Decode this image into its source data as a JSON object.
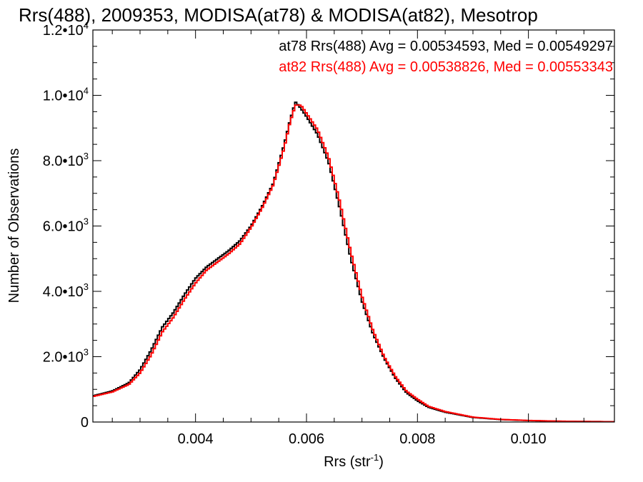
{
  "chart_data": {
    "type": "line",
    "step": true,
    "title": "Rrs(488), 2009353, MODISA(at78) & MODISA(at82), Mesotrop",
    "xlabel": "Rrs (str",
    "xlabel_sup": "-1",
    "xlabel_end": ")",
    "ylabel": "Number of Observations",
    "xlim": [
      0.00215,
      0.01155
    ],
    "ylim": [
      0,
      12000
    ],
    "xticks": [
      {
        "value": 0.004,
        "label": "0.004"
      },
      {
        "value": 0.006,
        "label": "0.006"
      },
      {
        "value": 0.008,
        "label": "0.008"
      },
      {
        "value": 0.01,
        "label": "0.010"
      }
    ],
    "yticks": [
      {
        "value": 0,
        "mant": "0",
        "exp": ""
      },
      {
        "value": 2000,
        "mant": "2.0•10",
        "exp": "3"
      },
      {
        "value": 4000,
        "mant": "4.0•10",
        "exp": "3"
      },
      {
        "value": 6000,
        "mant": "6.0•10",
        "exp": "3"
      },
      {
        "value": 8000,
        "mant": "8.0•10",
        "exp": "3"
      },
      {
        "value": 10000,
        "mant": "1.0•10",
        "exp": "4"
      },
      {
        "value": 12000,
        "mant": "1.2•10",
        "exp": "4"
      }
    ],
    "legend_entries": [
      {
        "text": "at78 Rrs(488) Avg = 0.00534593, Med = 0.00549297",
        "color": "#000000"
      },
      {
        "text": "at82 Rrs(488) Avg = 0.00538826, Med = 0.00553343",
        "color": "#ff0000"
      }
    ],
    "series": [
      {
        "color": "#000000",
        "x": [
          0.00215,
          0.0025,
          0.0028,
          0.003,
          0.0032,
          0.0034,
          0.0036,
          0.0038,
          0.004,
          0.0042,
          0.0044,
          0.0046,
          0.0048,
          0.005,
          0.0052,
          0.0054,
          0.0056,
          0.0057,
          0.0058,
          0.0059,
          0.006,
          0.0062,
          0.0064,
          0.0066,
          0.0068,
          0.007,
          0.0072,
          0.0074,
          0.0076,
          0.0078,
          0.008,
          0.0082,
          0.0085,
          0.009,
          0.0095,
          0.01,
          0.0105,
          0.011,
          0.01155
        ],
        "y": [
          800,
          950,
          1200,
          1600,
          2200,
          2900,
          3350,
          3900,
          4400,
          4750,
          5000,
          5250,
          5550,
          6000,
          6600,
          7300,
          8500,
          9200,
          9800,
          9600,
          9350,
          8800,
          7950,
          6550,
          5000,
          3700,
          2700,
          1950,
          1350,
          900,
          650,
          450,
          300,
          140,
          75,
          45,
          25,
          15,
          10
        ]
      },
      {
        "color": "#ff0000",
        "x": [
          0.00215,
          0.0025,
          0.0028,
          0.003,
          0.0032,
          0.0034,
          0.0036,
          0.0038,
          0.004,
          0.0042,
          0.0044,
          0.0046,
          0.0048,
          0.005,
          0.0052,
          0.0054,
          0.0056,
          0.0057,
          0.0058,
          0.0059,
          0.006,
          0.0062,
          0.0064,
          0.0066,
          0.0068,
          0.007,
          0.0072,
          0.0074,
          0.0076,
          0.0078,
          0.008,
          0.0082,
          0.0085,
          0.009,
          0.0095,
          0.01,
          0.0105,
          0.011,
          0.01155
        ],
        "y": [
          780,
          920,
          1150,
          1500,
          2050,
          2750,
          3200,
          3750,
          4250,
          4650,
          4900,
          5150,
          5450,
          5950,
          6550,
          7250,
          8400,
          9150,
          9700,
          9700,
          9450,
          8950,
          8100,
          6750,
          5200,
          3850,
          2800,
          2000,
          1400,
          950,
          700,
          480,
          320,
          150,
          80,
          48,
          27,
          16,
          10
        ]
      }
    ]
  }
}
